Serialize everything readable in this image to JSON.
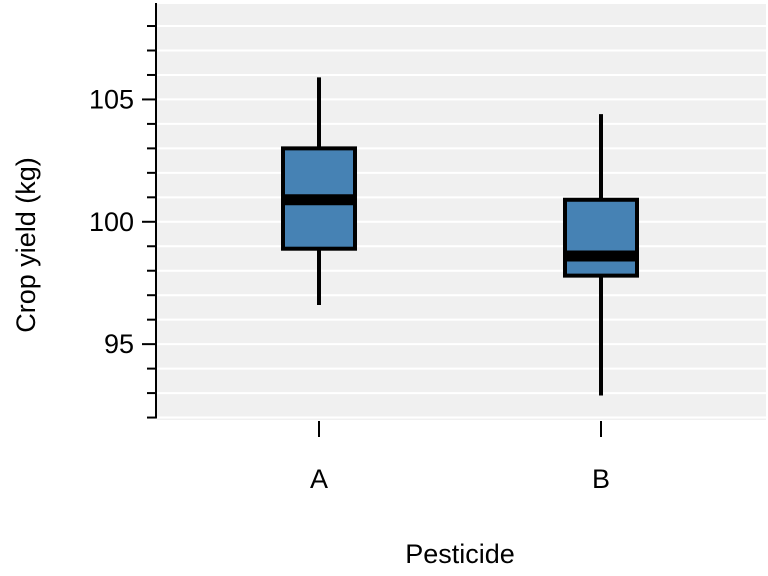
{
  "chart_data": {
    "type": "boxplot",
    "xlabel": "Pesticide",
    "ylabel": "Crop yield (kg)",
    "categories": [
      "A",
      "B"
    ],
    "boxes": [
      {
        "label": "A",
        "whisker_low": 96.6,
        "q1": 98.9,
        "median": 100.9,
        "q3": 103.0,
        "whisker_high": 105.9
      },
      {
        "label": "B",
        "whisker_low": 92.9,
        "q1": 97.8,
        "median": 98.6,
        "q3": 100.9,
        "whisker_high": 104.4
      }
    ],
    "y_ticks": [
      "95",
      "100",
      "105"
    ],
    "ylim": [
      91.9,
      108.9
    ],
    "grid": true,
    "colors": {
      "box_fill": "#4682b4",
      "panel_bg": "#f0f0f0",
      "grid": "#ffffff",
      "stroke": "#000000"
    }
  }
}
